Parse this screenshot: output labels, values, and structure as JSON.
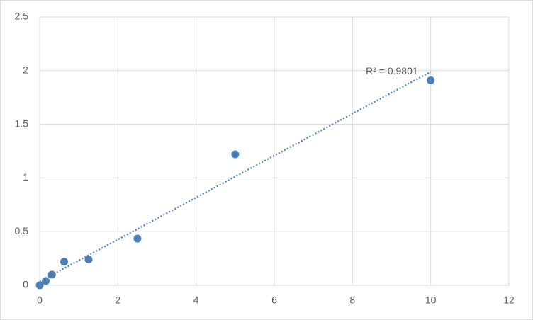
{
  "chart_data": {
    "type": "scatter",
    "x": [
      0,
      0.156,
      0.3125,
      0.625,
      1.25,
      2.5,
      5,
      10
    ],
    "values": [
      0,
      0.04,
      0.1,
      0.22,
      0.24,
      0.435,
      1.22,
      1.91
    ],
    "color": "#4a7ebb",
    "xlim": [
      0,
      12
    ],
    "xticks": [
      0,
      2,
      4,
      6,
      8,
      10,
      12
    ],
    "ylim": [
      0,
      2.5
    ],
    "yticks": [
      0,
      0.5,
      1,
      1.5,
      2,
      2.5
    ],
    "grid": true,
    "trendline": "linear",
    "annotation": "R² = 0.9801"
  }
}
